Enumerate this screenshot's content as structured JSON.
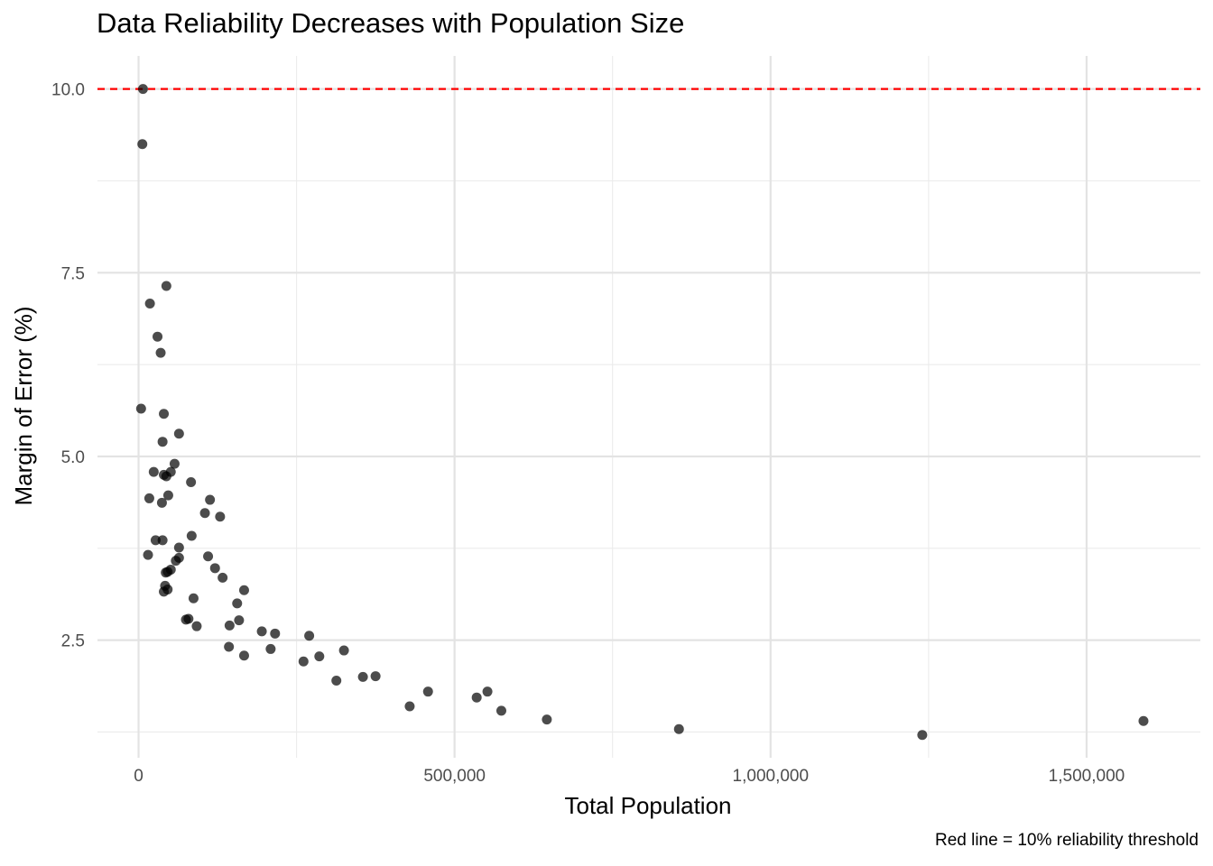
{
  "chart_data": {
    "type": "scatter",
    "title": "Data Reliability Decreases with Population Size",
    "xlabel": "Total Population",
    "ylabel": "Margin of Error (%)",
    "caption": "Red line = 10% reliability threshold",
    "xlim": [
      -65000,
      1680000
    ],
    "ylim": [
      0.9,
      10.45
    ],
    "x_ticks": [
      0,
      500000,
      1000000,
      1500000
    ],
    "x_tick_labels": [
      "0",
      "500,000",
      "1,000,000",
      "1,500,000"
    ],
    "y_ticks": [
      2.5,
      5.0,
      7.5,
      10.0
    ],
    "y_tick_labels": [
      "2.5",
      "5.0",
      "7.5",
      "10.0"
    ],
    "x_minor_ticks": [
      250000,
      750000,
      1250000
    ],
    "y_minor_ticks": [
      1.25,
      3.75,
      6.25,
      8.75
    ],
    "grid": true,
    "reference_line": {
      "y": 10.0,
      "color": "#ff0000",
      "style": "dashed"
    },
    "point_color": "#000000",
    "point_opacity": 0.7,
    "points": [
      [
        7000,
        10.0
      ],
      [
        6000,
        9.25
      ],
      [
        4000,
        5.65
      ],
      [
        44000,
        7.32
      ],
      [
        18000,
        7.08
      ],
      [
        30000,
        6.63
      ],
      [
        35000,
        6.41
      ],
      [
        40000,
        5.58
      ],
      [
        64000,
        5.31
      ],
      [
        38000,
        5.2
      ],
      [
        57000,
        4.9
      ],
      [
        24000,
        4.79
      ],
      [
        51000,
        4.79
      ],
      [
        40000,
        4.75
      ],
      [
        44000,
        4.73
      ],
      [
        83000,
        4.65
      ],
      [
        47000,
        4.47
      ],
      [
        17000,
        4.43
      ],
      [
        37000,
        4.37
      ],
      [
        113000,
        4.41
      ],
      [
        105000,
        4.23
      ],
      [
        129000,
        4.18
      ],
      [
        84000,
        3.92
      ],
      [
        27000,
        3.86
      ],
      [
        38000,
        3.86
      ],
      [
        64000,
        3.76
      ],
      [
        15000,
        3.66
      ],
      [
        110000,
        3.64
      ],
      [
        64000,
        3.62
      ],
      [
        59000,
        3.58
      ],
      [
        121000,
        3.48
      ],
      [
        51000,
        3.46
      ],
      [
        46000,
        3.43
      ],
      [
        43000,
        3.42
      ],
      [
        133000,
        3.35
      ],
      [
        42000,
        3.24
      ],
      [
        46000,
        3.19
      ],
      [
        40000,
        3.16
      ],
      [
        167000,
        3.18
      ],
      [
        87000,
        3.07
      ],
      [
        156000,
        3.0
      ],
      [
        75000,
        2.78
      ],
      [
        79000,
        2.79
      ],
      [
        159000,
        2.77
      ],
      [
        92000,
        2.69
      ],
      [
        144000,
        2.7
      ],
      [
        195000,
        2.62
      ],
      [
        216000,
        2.59
      ],
      [
        270000,
        2.56
      ],
      [
        143000,
        2.41
      ],
      [
        209000,
        2.38
      ],
      [
        167000,
        2.29
      ],
      [
        286000,
        2.28
      ],
      [
        261000,
        2.21
      ],
      [
        325000,
        2.36
      ],
      [
        375000,
        2.01
      ],
      [
        355000,
        2.0
      ],
      [
        313000,
        1.95
      ],
      [
        458000,
        1.8
      ],
      [
        552000,
        1.8
      ],
      [
        535000,
        1.72
      ],
      [
        429000,
        1.6
      ],
      [
        574000,
        1.54
      ],
      [
        646000,
        1.42
      ],
      [
        855000,
        1.29
      ],
      [
        1240000,
        1.21
      ],
      [
        1590000,
        1.4
      ]
    ]
  }
}
